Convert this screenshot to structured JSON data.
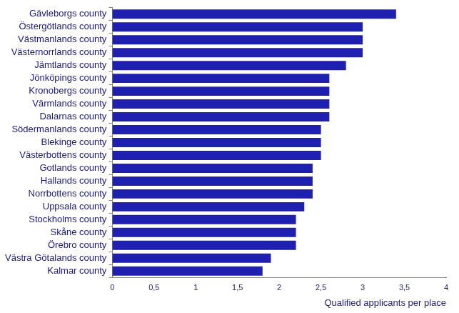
{
  "chart_data": {
    "type": "bar",
    "orientation": "horizontal",
    "x_label": "Qualified applicants per place",
    "categories": [
      "Gävleborgs county",
      "Östergötlands county",
      "Västmanlands county",
      "Västernorrlands county",
      "Jämtlands county",
      "Jönköpings county",
      "Kronobergs county",
      "Värmlands county",
      "Dalarnas county",
      "Södermanlands county",
      "Blekinge county",
      "Västerbottens county",
      "Gotlands county",
      "Hallands county",
      "Norrbottens county",
      "Uppsala county",
      "Stockholms county",
      "Skåne county",
      "Örebro county",
      "Västra Götalands county",
      "Kalmar county"
    ],
    "values": [
      3.4,
      3.0,
      3.0,
      3.0,
      2.8,
      2.6,
      2.6,
      2.6,
      2.6,
      2.5,
      2.5,
      2.5,
      2.4,
      2.4,
      2.4,
      2.3,
      2.2,
      2.2,
      2.2,
      1.9,
      1.8
    ],
    "color": "#1f1fb0",
    "xlim": [
      0,
      4
    ],
    "xticks": [
      0,
      {
        "value": 0.5,
        "label": "0,5"
      },
      1,
      {
        "value": 1.5,
        "label": "1,5"
      },
      2,
      {
        "value": 2.5,
        "label": "2,5"
      },
      3,
      {
        "value": 3.5,
        "label": "3,5"
      },
      4
    ],
    "grid": false
  }
}
